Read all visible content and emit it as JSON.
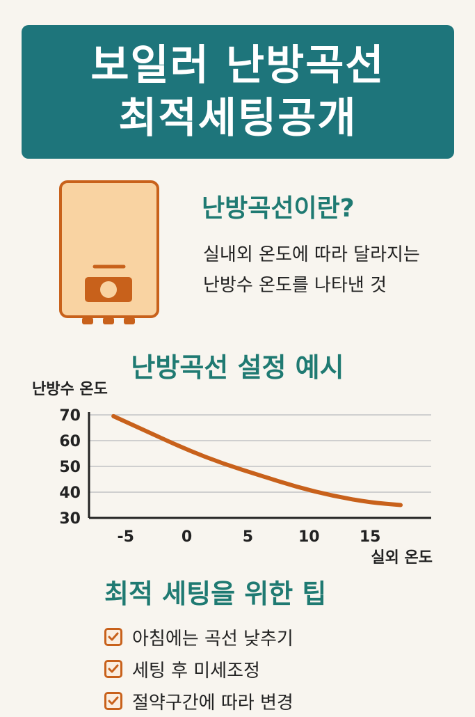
{
  "banner": {
    "line1": "보일러 난방곡선",
    "line2": "최적세팅공개"
  },
  "intro": {
    "title": "난방곡선이란?",
    "desc_line1": "실내외 온도에 따라 달라지는",
    "desc_line2": "난방수 온도를 나타낸 것"
  },
  "chart_title": "난방곡선 설정 예시",
  "chart_data": {
    "type": "line",
    "ylabel": "난방수 온도",
    "xlabel": "실외 온도",
    "x_ticks": [
      -5,
      0,
      5,
      10,
      15
    ],
    "y_ticks": [
      30,
      40,
      50,
      60,
      70
    ],
    "xlim": [
      -8,
      20
    ],
    "ylim": [
      30,
      70
    ],
    "grid": true,
    "series": [
      {
        "color": "#c8611b",
        "x": [
          -6,
          -3,
          0,
          3,
          6,
          9,
          12,
          15,
          17.5
        ],
        "y": [
          69.5,
          63,
          56.5,
          51,
          46.5,
          42,
          38.5,
          36,
          35
        ]
      }
    ]
  },
  "tips_title": "최적 세팅을 위한 팁",
  "tips": [
    {
      "label": "아침에는 곡선 낮추기"
    },
    {
      "label": "세팅 후 미세조정"
    },
    {
      "label": "절약구간에 따라 변경"
    }
  ],
  "colors": {
    "accent": "#1e757b",
    "orange": "#c8611b",
    "boiler_fill": "#f9d3a2"
  },
  "icons": {
    "boiler": "boiler-icon",
    "check": "check-icon"
  }
}
